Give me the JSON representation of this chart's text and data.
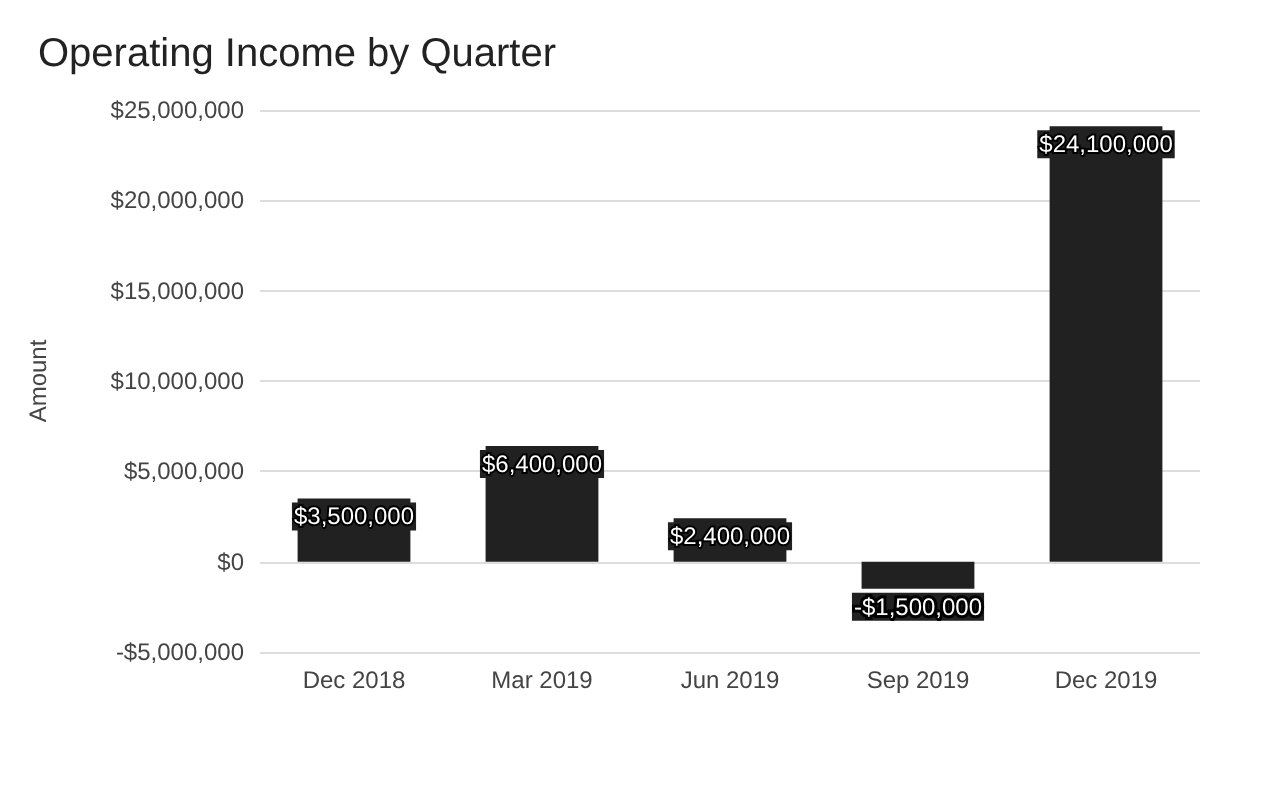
{
  "chart_data": {
    "type": "bar",
    "title": "Operating Income by Quarter",
    "ylabel": "Amount",
    "categories": [
      "Dec 2018",
      "Mar 2019",
      "Jun 2019",
      "Sep 2019",
      "Dec 2019"
    ],
    "values": [
      3500000,
      6400000,
      2400000,
      -1500000,
      24100000
    ],
    "value_labels": [
      "$3,500,000",
      "$6,400,000",
      "$2,400,000",
      "-$1,500,000",
      "$24,100,000"
    ],
    "color": "#212121",
    "ylim": [
      -5000000,
      25000000
    ],
    "yticks": [
      {
        "value": -5000000,
        "label": "-$5,000,000"
      },
      {
        "value": 0,
        "label": "$0"
      },
      {
        "value": 5000000,
        "label": "$5,000,000"
      },
      {
        "value": 10000000,
        "label": "$10,000,000"
      },
      {
        "value": 15000000,
        "label": "$15,000,000"
      },
      {
        "value": 20000000,
        "label": "$20,000,000"
      },
      {
        "value": 25000000,
        "label": "$25,000,000"
      }
    ],
    "grid": "y"
  }
}
